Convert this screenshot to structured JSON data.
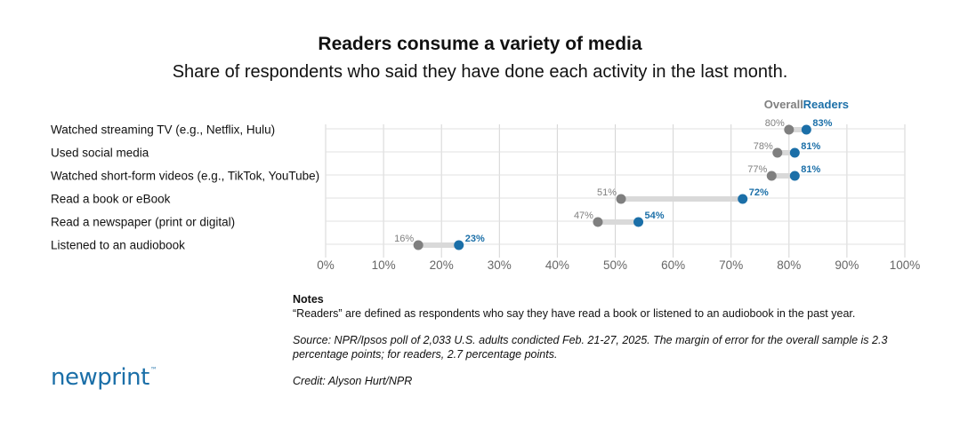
{
  "title": "Readers consume a variety of media",
  "subtitle": "Share of respondents who said they have done each activity in the last month.",
  "colors": {
    "overall": "#7f7f7f",
    "readers": "#1b6fa8",
    "connector": "#d9d9d9",
    "grid": "#d4d4d4"
  },
  "chart_data": {
    "type": "dumbbell",
    "legend_position": "top-right",
    "xlim": [
      0,
      100
    ],
    "x_ticks": [
      "0%",
      "10%",
      "20%",
      "30%",
      "40%",
      "50%",
      "60%",
      "70%",
      "80%",
      "90%",
      "100%"
    ],
    "grid": true,
    "categories": [
      "Watched streaming TV (e.g., Netflix, Hulu)",
      "Used social media",
      "Watched short-form videos (e.g., TikTok, YouTube)",
      "Read a book or eBook",
      "Read a newspaper (print or digital)",
      "Listened to an audiobook"
    ],
    "series": [
      {
        "name": "Overall",
        "values": [
          80,
          78,
          77,
          51,
          47,
          16
        ],
        "labels": [
          "80%",
          "78%",
          "77%",
          "51%",
          "47%",
          "16%"
        ]
      },
      {
        "name": "Readers",
        "values": [
          83,
          81,
          81,
          72,
          54,
          23
        ],
        "labels": [
          "83%",
          "81%",
          "81%",
          "72%",
          "54%",
          "23%"
        ]
      }
    ]
  },
  "notes": {
    "heading": "Notes",
    "definition": "“Readers” are defined as respondents who say they have read a book or listened to an audiobook in the past year.",
    "source": "Source: NPR/Ipsos poll of 2,033 U.S. adults condicted Feb. 21-27, 2025. The margin of error for the overall sample is 2.3 percentage points; for readers, 2.7 percentage points.",
    "credit": "Credit: Alyson Hurt/NPR"
  },
  "logo": {
    "text": "newprint",
    "mark": "™"
  }
}
